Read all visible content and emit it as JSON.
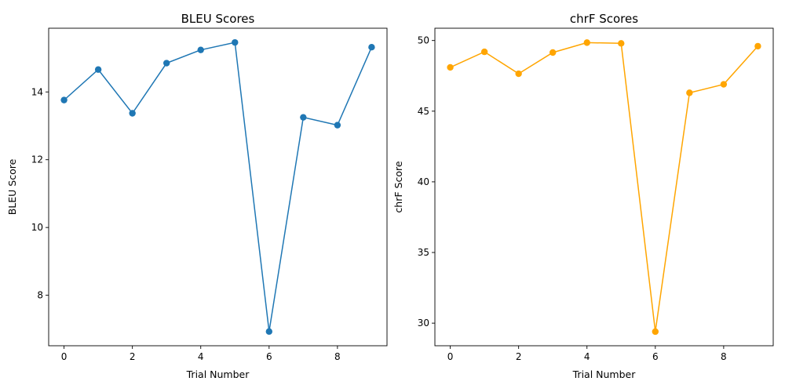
{
  "chart_data": [
    {
      "type": "line",
      "title": "BLEU Scores",
      "xlabel": "Trial Number",
      "ylabel": "BLEU Score",
      "x": [
        0,
        1,
        2,
        3,
        4,
        5,
        6,
        7,
        8,
        9
      ],
      "series": [
        {
          "values": [
            13.76,
            14.66,
            13.37,
            14.85,
            15.24,
            15.46,
            6.93,
            13.25,
            13.02,
            15.32
          ],
          "color": "#1f77b4"
        }
      ],
      "xlim": [
        -0.45,
        9.45
      ],
      "ylim": [
        6.51,
        15.88
      ],
      "xticks": [
        0,
        2,
        4,
        6,
        8
      ],
      "yticks": [
        8,
        10,
        12,
        14
      ],
      "grid": false,
      "legend": "none"
    },
    {
      "type": "line",
      "title": "chrF Scores",
      "xlabel": "Trial Number",
      "ylabel": "chrF Score",
      "x": [
        0,
        1,
        2,
        3,
        4,
        5,
        6,
        7,
        8,
        9
      ],
      "series": [
        {
          "values": [
            48.1,
            49.2,
            47.65,
            49.15,
            49.85,
            49.8,
            29.4,
            46.3,
            46.9,
            49.6
          ],
          "color": "#ffa500"
        }
      ],
      "xlim": [
        -0.45,
        9.45
      ],
      "ylim": [
        28.4,
        50.87
      ],
      "xticks": [
        0,
        2,
        4,
        6,
        8
      ],
      "yticks": [
        30,
        35,
        40,
        45,
        50
      ],
      "grid": false,
      "legend": "none"
    }
  ]
}
